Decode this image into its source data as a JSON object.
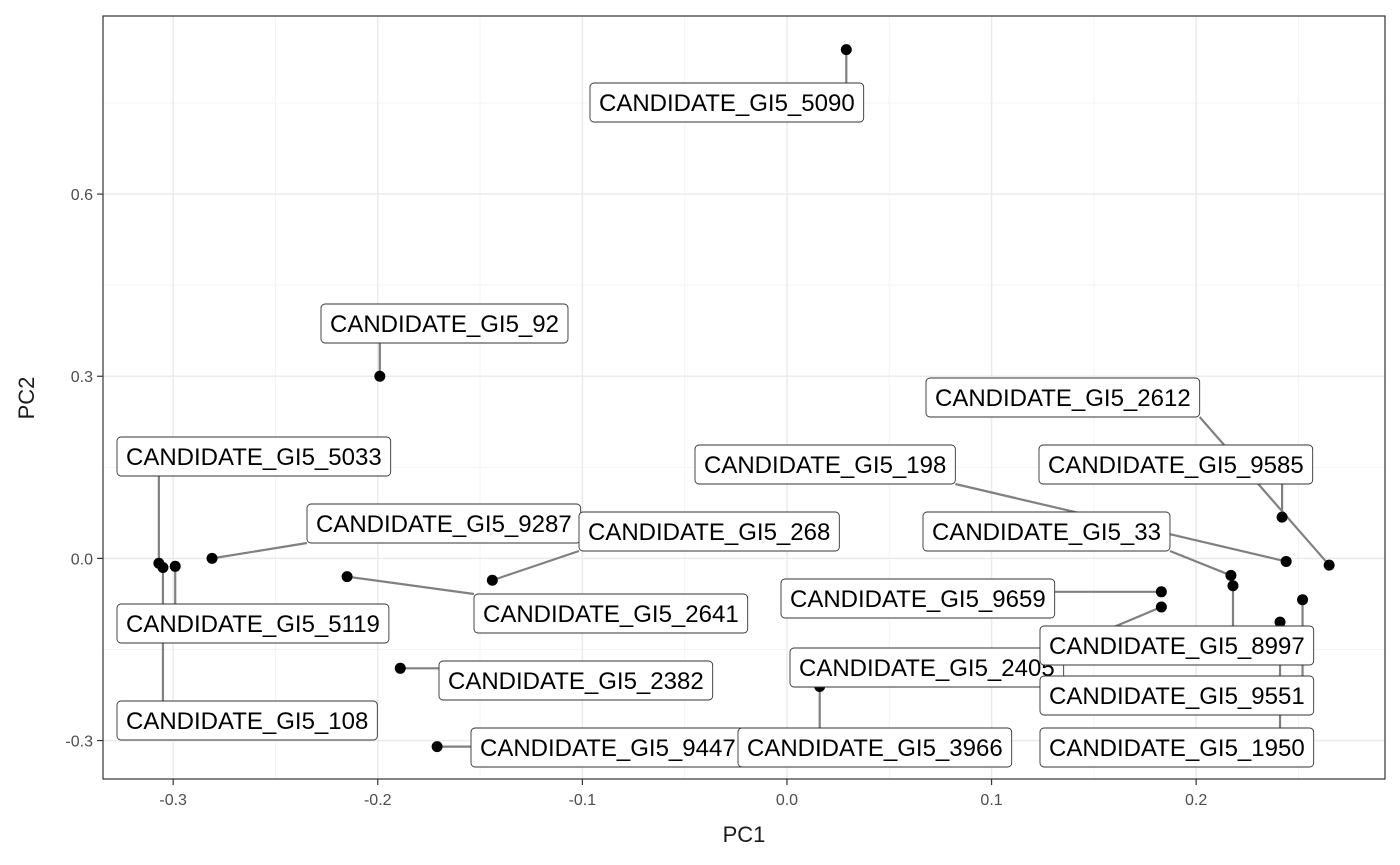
{
  "chart_data": {
    "type": "scatter",
    "title": "",
    "xlabel": "PC1",
    "ylabel": "PC2",
    "xlim": [
      -0.3343,
      0.2923
    ],
    "ylim": [
      -0.3633,
      0.8933
    ],
    "grid": true,
    "x_ticks": [
      {
        "value": -0.3,
        "label": "-0.3"
      },
      {
        "value": -0.2,
        "label": "-0.2"
      },
      {
        "value": -0.1,
        "label": "-0.1"
      },
      {
        "value": 0.0,
        "label": "0.0"
      },
      {
        "value": 0.1,
        "label": "0.1"
      },
      {
        "value": 0.2,
        "label": "0.2"
      }
    ],
    "y_ticks": [
      {
        "value": -0.3,
        "label": "-0.3"
      },
      {
        "value": 0.0,
        "label": "0.0"
      },
      {
        "value": 0.3,
        "label": "0.3"
      },
      {
        "value": 0.6,
        "label": "0.6"
      }
    ],
    "colors": {
      "point": "#000000",
      "segment": "#808080",
      "grid_major": "#ebebeb",
      "grid_minor": "#f4f4f4",
      "panel_border": "#333333",
      "label_border": "#333333"
    },
    "points": [
      {
        "label": "CANDIDATE_GI5_5090",
        "x": 0.029,
        "y": 0.838
      },
      {
        "label": "CANDIDATE_GI5_92",
        "x": -0.199,
        "y": 0.3
      },
      {
        "label": "CANDIDATE_GI5_5033",
        "x": -0.307,
        "y": -0.008
      },
      {
        "label": "CANDIDATE_GI5_5119",
        "x": -0.299,
        "y": -0.013
      },
      {
        "label": "CANDIDATE_GI5_108",
        "x": -0.305,
        "y": -0.015
      },
      {
        "label": "CANDIDATE_GI5_9287",
        "x": -0.281,
        "y": 0.0
      },
      {
        "label": "CANDIDATE_GI5_268",
        "x": -0.144,
        "y": -0.036
      },
      {
        "label": "CANDIDATE_GI5_2641",
        "x": -0.215,
        "y": -0.03
      },
      {
        "label": "CANDIDATE_GI5_2382",
        "x": -0.189,
        "y": -0.181
      },
      {
        "label": "CANDIDATE_GI5_9447",
        "x": -0.171,
        "y": -0.31
      },
      {
        "label": "CANDIDATE_GI5_3966",
        "x": 0.016,
        "y": -0.211
      },
      {
        "label": "CANDIDATE_GI5_2405",
        "x": 0.183,
        "y": -0.08
      },
      {
        "label": "CANDIDATE_GI5_9659",
        "x": 0.183,
        "y": -0.055
      },
      {
        "label": "CANDIDATE_GI5_198",
        "x": 0.244,
        "y": -0.005
      },
      {
        "label": "CANDIDATE_GI5_33",
        "x": 0.217,
        "y": -0.028
      },
      {
        "label": "CANDIDATE_GI5_2612",
        "x": 0.265,
        "y": -0.011
      },
      {
        "label": "CANDIDATE_GI5_9585",
        "x": 0.242,
        "y": 0.068
      },
      {
        "label": "CANDIDATE_GI5_8997",
        "x": 0.218,
        "y": -0.045
      },
      {
        "label": "CANDIDATE_GI5_9551",
        "x": 0.252,
        "y": -0.068
      },
      {
        "label": "CANDIDATE_GI5_1950",
        "x": 0.241,
        "y": -0.105
      }
    ]
  }
}
